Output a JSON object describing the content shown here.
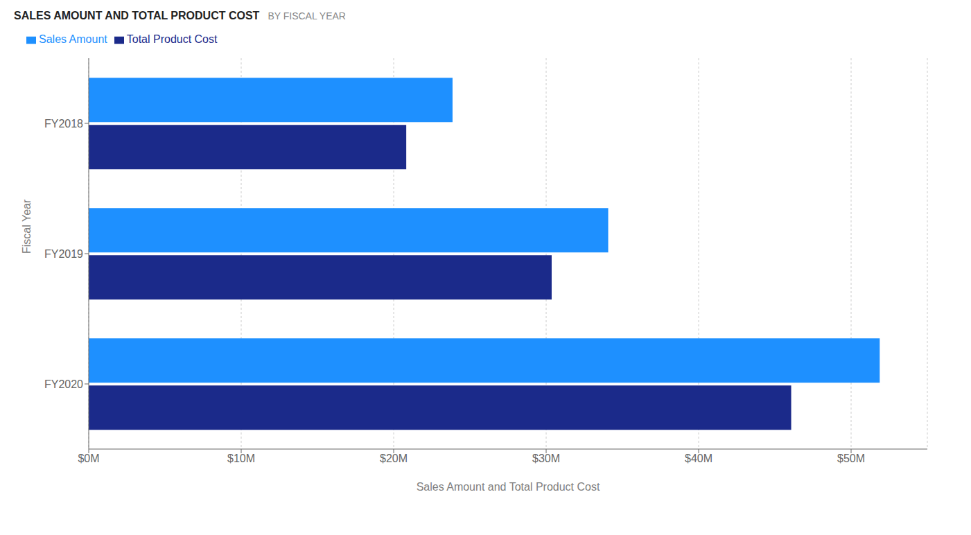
{
  "chart_data": {
    "type": "bar",
    "orientation": "horizontal",
    "title": "SALES AMOUNT AND TOTAL PRODUCT COST",
    "subtitle": "BY FISCAL YEAR",
    "x_label": "Sales Amount and Total Product Cost",
    "y_label": "Fiscal Year",
    "categories": [
      "FY2020",
      "FY2019",
      "FY2018"
    ],
    "series": [
      {
        "name": "Sales Amount",
        "color": "#1E90FF",
        "values": [
          51.878,
          34.07,
          23.861
        ]
      },
      {
        "name": "Total Product Cost",
        "color": "#1B2A8A",
        "values": [
          46.071,
          30.362,
          20.825
        ]
      }
    ],
    "xlim": [
      0,
      55
    ],
    "xticks": [
      {
        "value": 0,
        "label": "$0M"
      },
      {
        "value": 10,
        "label": "$10M"
      },
      {
        "value": 20,
        "label": "$20M"
      },
      {
        "value": 30,
        "label": "$30M"
      },
      {
        "value": 40,
        "label": "$40M"
      },
      {
        "value": 50,
        "label": "$50M"
      }
    ],
    "grid": true,
    "legend": "top"
  }
}
